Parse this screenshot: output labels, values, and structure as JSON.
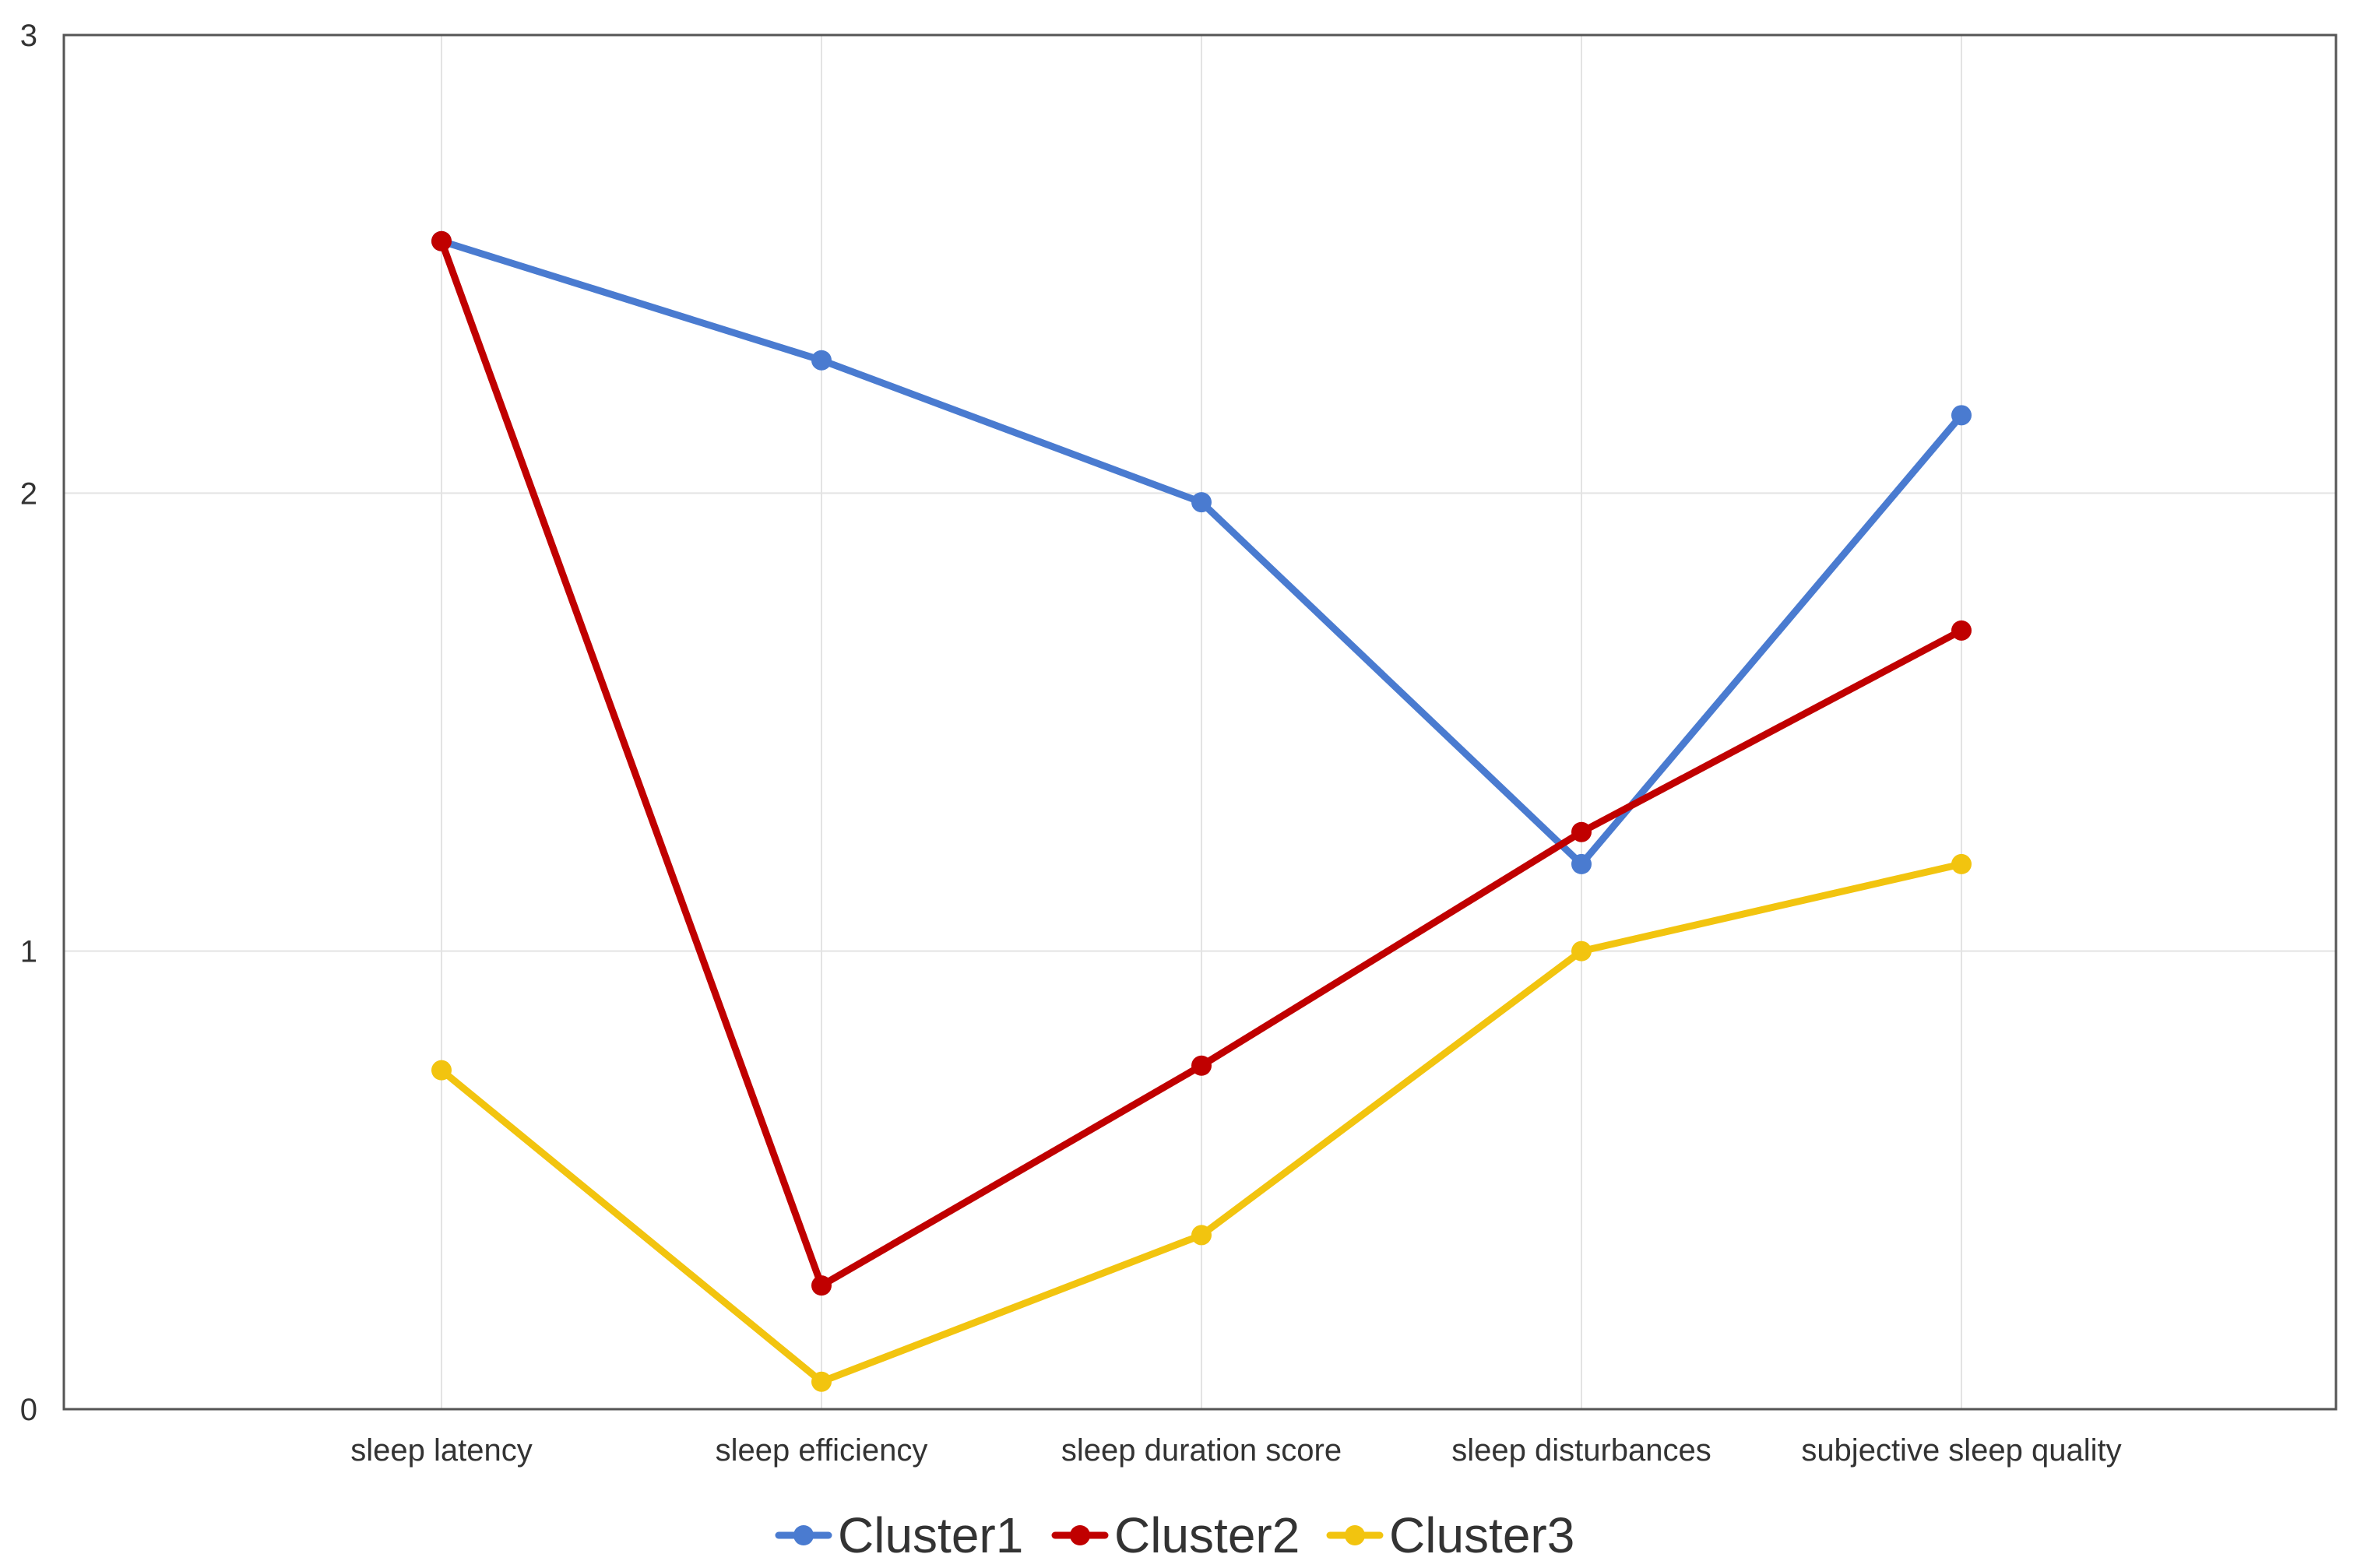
{
  "chart_data": {
    "type": "line",
    "title": "",
    "xlabel": "",
    "ylabel": "",
    "categories": [
      "sleep latency",
      "sleep efficiency",
      "sleep duration score",
      "sleep disturbances",
      "subjective sleep quality"
    ],
    "ylim": [
      0,
      3
    ],
    "yticks": [
      "0",
      "1",
      "2",
      "3"
    ],
    "grid": true,
    "legend_position": "bottom",
    "series": [
      {
        "name": "Cluster1",
        "color": "#4a7bd0",
        "values": [
          2.55,
          2.29,
          1.98,
          1.19,
          2.17
        ]
      },
      {
        "name": "Cluster2",
        "color": "#c00000",
        "values": [
          2.55,
          0.27,
          0.75,
          1.26,
          1.7
        ]
      },
      {
        "name": "Cluster3",
        "color": "#f2c40f",
        "values": [
          0.74,
          0.06,
          0.38,
          1.0,
          1.19
        ]
      }
    ]
  }
}
